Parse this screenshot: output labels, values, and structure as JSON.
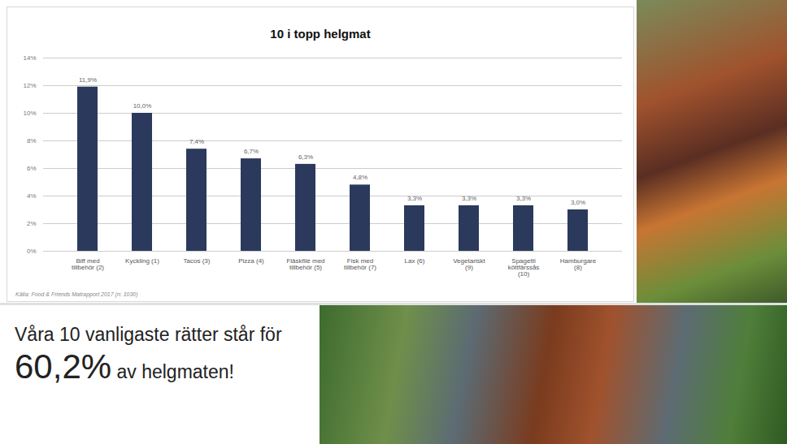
{
  "chart_data": {
    "type": "bar",
    "title": "10 i topp helgmat",
    "categories": [
      "Biff med tillbehör (2)",
      "Kyckling (1)",
      "Tacos (3)",
      "Pizza (4)",
      "Fläskfilé med tillbehör (5)",
      "Fisk med tillbehör (7)",
      "Lax (6)",
      "Vegetariskt (9)",
      "Spagetti köttfärssås (10)",
      "Hamburgare (8)"
    ],
    "values": [
      11.9,
      10.0,
      7.4,
      6.7,
      6.3,
      4.8,
      3.3,
      3.3,
      3.3,
      3.0
    ],
    "value_labels": [
      "11,9%",
      "10,0%",
      "7,4%",
      "6,7%",
      "6,3%",
      "4,8%",
      "3,3%",
      "3,3%",
      "3,3%",
      "3,0%"
    ],
    "data_labels": true,
    "color": "#2b3a5c",
    "ylim": [
      0,
      14
    ],
    "yticks": [
      {
        "value": 0,
        "label": "0%"
      },
      {
        "value": 2,
        "label": "2%"
      },
      {
        "value": 4,
        "label": "4%"
      },
      {
        "value": 6,
        "label": "6%"
      },
      {
        "value": 8,
        "label": "8%"
      },
      {
        "value": 10,
        "label": "10%"
      },
      {
        "value": 12,
        "label": "12%"
      },
      {
        "value": 14,
        "label": "14%"
      }
    ],
    "grid": true,
    "source": "Källa: Food & Friends Matrapport 2017 (n: 1030)",
    "callout": {
      "before": "Våra 10 vanligaste rätter står för",
      "highlight": "60,2%",
      "after": "av helgmaten!"
    }
  }
}
